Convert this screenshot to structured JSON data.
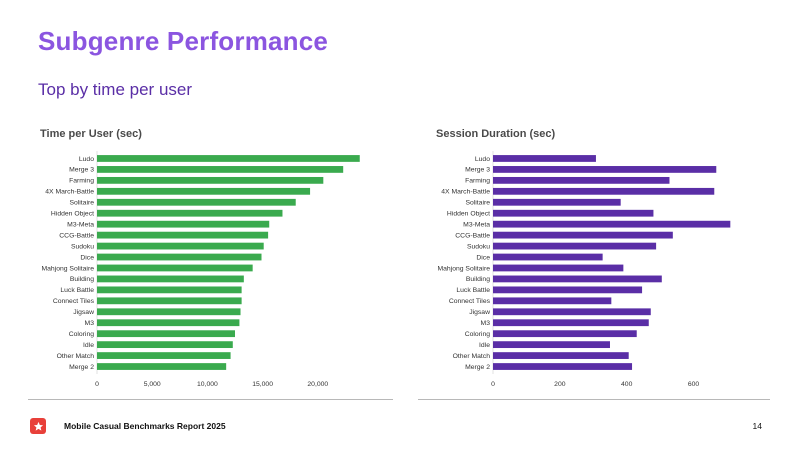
{
  "slide": {
    "title": "Subgenre Performance",
    "subtitle": "Top by time per user"
  },
  "footer": {
    "report_name": "Mobile Casual Benchmarks Report 2025",
    "page_number": "14",
    "logo_icon": "star-icon",
    "logo_color": "#e8403a"
  },
  "colors": {
    "title": "#8b55e0",
    "subtitle": "#5a2ea6",
    "left_bars": "#3aaa4e",
    "right_bars": "#5a2ea6"
  },
  "chart_data": [
    {
      "type": "bar",
      "orientation": "horizontal",
      "title": "Time per User (sec)",
      "categories": [
        "Ludo",
        "Merge 3",
        "Farming",
        "4X March-Battle",
        "Solitaire",
        "Hidden Object",
        "M3-Meta",
        "CCG-Battle",
        "Sudoku",
        "Dice",
        "Mahjong Solitaire",
        "Building",
        "Luck Battle",
        "Connect Tiles",
        "Jigsaw",
        "M3",
        "Coloring",
        "Idle",
        "Other Match",
        "Merge 2"
      ],
      "values": [
        23800,
        22300,
        20500,
        19300,
        18000,
        16800,
        15600,
        15500,
        15100,
        14900,
        14100,
        13300,
        13100,
        13100,
        13000,
        12900,
        12500,
        12300,
        12100,
        11700
      ],
      "ticks": [
        0,
        5000,
        10000,
        15000,
        20000
      ],
      "tick_labels": [
        "0",
        "5,000",
        "10,000",
        "15,000",
        "20,000"
      ],
      "xlim": [
        0,
        25000
      ],
      "color": "#3aaa4e"
    },
    {
      "type": "bar",
      "orientation": "horizontal",
      "title": "Session Duration (sec)",
      "categories": [
        "Ludo",
        "Merge 3",
        "Farming",
        "4X March-Battle",
        "Solitaire",
        "Hidden Object",
        "M3-Meta",
        "CCG-Battle",
        "Sudoku",
        "Dice",
        "Mahjong Solitaire",
        "Building",
        "Luck Battle",
        "Connect Tiles",
        "Jigsaw",
        "M3",
        "Coloring",
        "Idle",
        "Other Match",
        "Merge 2"
      ],
      "values": [
        308,
        668,
        528,
        662,
        382,
        480,
        710,
        538,
        488,
        328,
        390,
        505,
        446,
        354,
        472,
        466,
        430,
        350,
        406,
        416
      ],
      "ticks": [
        0,
        200,
        400,
        600
      ],
      "tick_labels": [
        "0",
        "200",
        "400",
        "600"
      ],
      "xlim": [
        0,
        730
      ],
      "color": "#5a2ea6"
    }
  ]
}
